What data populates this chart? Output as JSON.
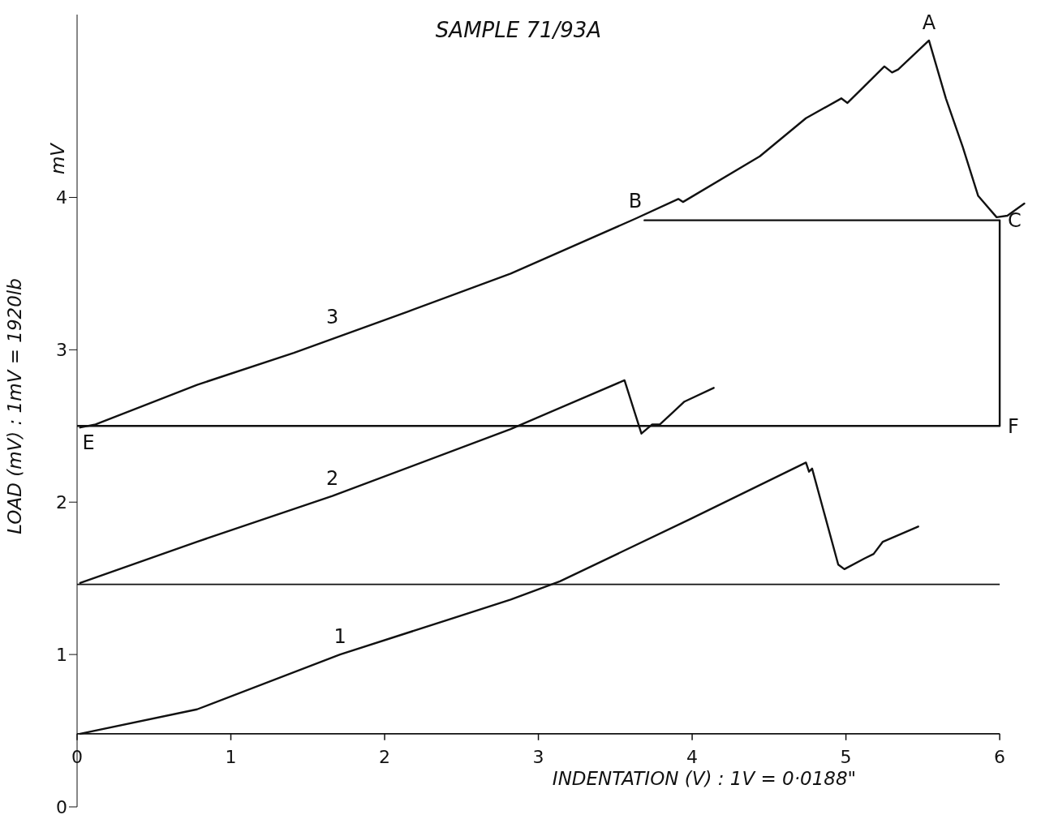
{
  "chart_data": {
    "type": "line",
    "title": "SAMPLE 71/93A",
    "xlabel": "INDENTATION (V) : 1V = 0·0188\"",
    "ylabel": "LOAD (mV)  :  1mV = 1920lb",
    "annotations": [
      "mV",
      {
        "text": "A",
        "x": 5.54,
        "y": 5.03
      },
      {
        "text": "B",
        "x": 3.63,
        "y": 3.86
      },
      {
        "text": "C",
        "x": 6.0,
        "y": 3.85
      },
      {
        "text": "E",
        "x": 0,
        "y": 2.5
      },
      {
        "text": "F",
        "x": 6.0,
        "y": 2.5
      },
      {
        "text": "3",
        "x": 1.66,
        "y": 3.1
      },
      {
        "text": "2",
        "x": 1.66,
        "y": 2.04
      },
      {
        "text": "1",
        "x": 1.71,
        "y": 1.0
      }
    ],
    "xlim": [
      0,
      6.2
    ],
    "xticks": [
      0,
      1,
      2,
      3,
      4,
      5,
      6
    ],
    "ylim": [
      0,
      5.2
    ],
    "yticks": [
      0,
      1,
      2,
      3,
      4
    ],
    "grid": false,
    "marker": "none",
    "line_style": "solid",
    "ref_lines": [
      {
        "axis": "y",
        "value": 0.48
      },
      {
        "axis": "y",
        "value": 1.46
      }
    ],
    "series": [
      {
        "color": "#111111",
        "x": [
          0.02,
          0.12,
          0.78,
          1.41,
          2.15,
          2.82,
          3.63,
          3.91,
          3.94,
          4.44,
          4.74,
          4.97,
          5.01,
          5.1,
          5.25,
          5.3,
          5.34,
          5.54,
          5.65,
          5.76,
          5.86,
          5.98,
          6.05,
          6.16
        ],
        "values": [
          2.49,
          2.51,
          2.77,
          2.98,
          3.25,
          3.5,
          3.86,
          3.99,
          3.97,
          4.27,
          4.52,
          4.65,
          4.62,
          4.71,
          4.86,
          4.82,
          4.84,
          5.03,
          4.65,
          4.33,
          4.01,
          3.87,
          3.88,
          3.96
        ]
      },
      {
        "color": "#111111",
        "x": [
          0,
          6.0,
          6.0,
          3.69
        ],
        "values": [
          2.5,
          2.5,
          3.85,
          3.85
        ]
      },
      {
        "color": "#111111",
        "x": [
          0.02,
          0.78,
          1.66,
          2.82,
          3.56,
          3.67,
          3.74,
          3.79,
          3.95,
          4.14
        ],
        "values": [
          1.47,
          1.74,
          2.04,
          2.48,
          2.8,
          2.45,
          2.51,
          2.51,
          2.66,
          2.75
        ]
      },
      {
        "color": "#111111",
        "x": [
          0.02,
          0.78,
          1.71,
          2.82,
          3.14,
          3.99,
          4.74,
          4.76,
          4.78,
          4.95,
          4.99,
          5.12,
          5.18,
          5.24,
          5.47
        ],
        "values": [
          0.48,
          0.64,
          1.0,
          1.36,
          1.48,
          1.89,
          2.26,
          2.2,
          2.22,
          1.59,
          1.56,
          1.63,
          1.66,
          1.74,
          1.84
        ]
      }
    ]
  }
}
